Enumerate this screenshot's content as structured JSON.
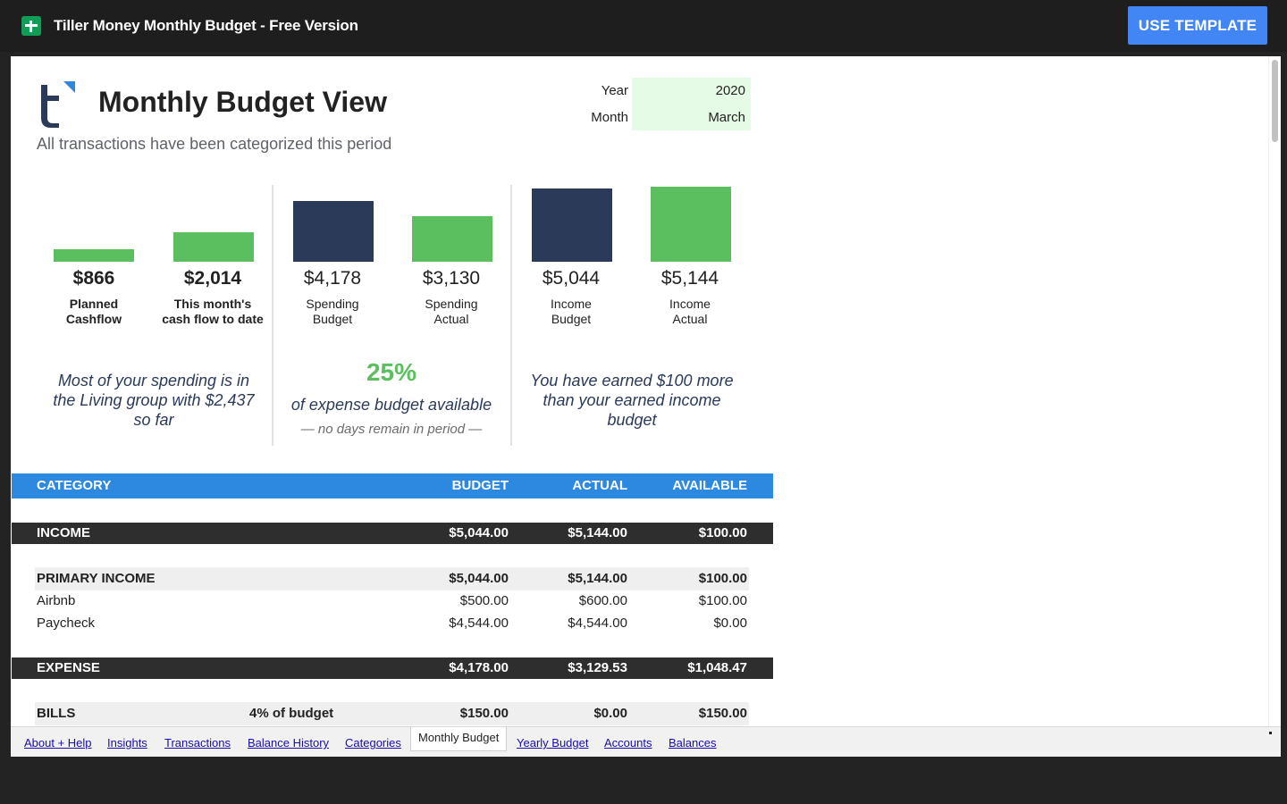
{
  "topbar": {
    "title": "Tiller Money Monthly Budget - Free Version",
    "use_template_label": "USE TEMPLATE",
    "brand_color": "#4285f4"
  },
  "header": {
    "title": "Monthly Budget View",
    "subtitle": "All transactions have been categorized this period",
    "year_label": "Year",
    "year_value": "2020",
    "month_label": "Month",
    "month_value": "March"
  },
  "metrics": [
    {
      "value": "$866",
      "label_1": "Planned",
      "label_2": "Cashflow",
      "color": "#5cbf5f",
      "level": 0.17
    },
    {
      "value": "$2,014",
      "label_1": "This month's",
      "label_2": "cash flow to date",
      "color": "#5cbf5f",
      "level": 0.39
    },
    {
      "value": "$4,178",
      "label_1": "Spending",
      "label_2": "Budget",
      "color": "#2b3a59",
      "level": 0.81
    },
    {
      "value": "$3,130",
      "label_1": "Spending",
      "label_2": "Actual",
      "color": "#5cbf5f",
      "level": 0.61
    },
    {
      "value": "$5,044",
      "label_1": "Income",
      "label_2": "Budget",
      "color": "#2b3a59",
      "level": 0.98
    },
    {
      "value": "$5,144",
      "label_1": "Income",
      "label_2": "Actual",
      "color": "#5cbf5f",
      "level": 1.0
    }
  ],
  "notes": {
    "spending_line1": "Most of your spending is in",
    "spending_line2": "the Living group with $2,437",
    "spending_line3": "so far",
    "pct_available": "25%",
    "pct_caption": "of expense budget available",
    "days_remaining": "— no days remain in period —",
    "income_line1": "You have earned $100 more",
    "income_line2": "than your earned income",
    "income_line3": "budget"
  },
  "table": {
    "headers": {
      "category": "CATEGORY",
      "budget": "BUDGET",
      "actual": "ACTUAL",
      "available": "AVAILABLE"
    },
    "income": {
      "label": "INCOME",
      "budget": "$5,044.00",
      "actual": "$5,144.00",
      "available": "$100.00"
    },
    "primary_income": {
      "label": "PRIMARY INCOME",
      "budget": "$5,044.00",
      "actual": "$5,144.00",
      "available": "$100.00"
    },
    "items": [
      {
        "label": "Airbnb",
        "budget": "$500.00",
        "actual": "$600.00",
        "available": "$100.00"
      },
      {
        "label": "Paycheck",
        "budget": "$4,544.00",
        "actual": "$4,544.00",
        "available": "$0.00"
      }
    ],
    "expense": {
      "label": "EXPENSE",
      "budget": "$4,178.00",
      "actual": "$3,129.53",
      "available": "$1,048.47"
    },
    "bills": {
      "label": "BILLS",
      "pct": "4%  of budget",
      "budget": "$150.00",
      "actual": "$0.00",
      "available": "$150.00"
    }
  },
  "tabs": [
    {
      "label": "About + Help"
    },
    {
      "label": "Insights"
    },
    {
      "label": "Transactions"
    },
    {
      "label": "Balance History"
    },
    {
      "label": "Categories"
    },
    {
      "label": "Monthly Budget"
    },
    {
      "label": "Yearly Budget"
    },
    {
      "label": "Accounts"
    },
    {
      "label": "Balances"
    }
  ]
}
